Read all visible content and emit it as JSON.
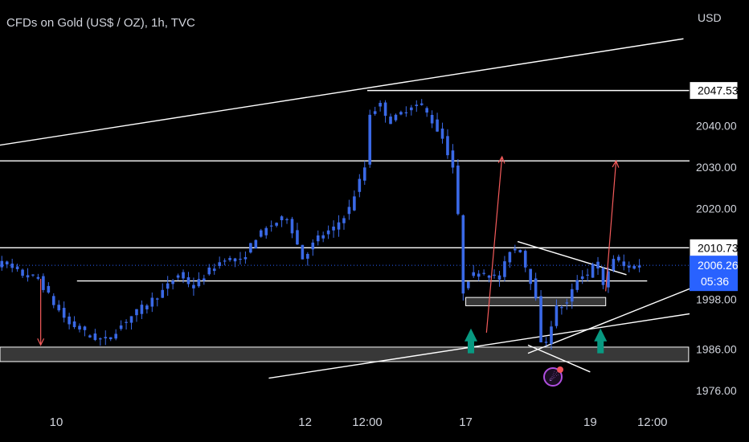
{
  "header": {
    "title": "CFDs on Gold (US$ / OZ), 1h, TVC",
    "currency": "USD"
  },
  "colors": {
    "candle": "#3a69e6",
    "drawing": "#ffffff",
    "arrow_red": "#f45b5b",
    "arrow_green": "#089981",
    "price_tag": "#2962ff"
  },
  "chart_data": {
    "type": "candlestick",
    "symbol": "XAUUSD",
    "interval": "1h",
    "y_axis": {
      "ticks": [
        1976,
        1986,
        1998,
        2010,
        2020,
        2030,
        2040
      ],
      "tick_labels": [
        "1976.00",
        "1986.00",
        "1998.00",
        "2010.00",
        "2020.00",
        "2030.00",
        "2040.00"
      ]
    },
    "x_axis": {
      "ticks": [
        {
          "label": "10",
          "t": 0
        },
        {
          "label": "12",
          "t": 48
        },
        {
          "label": "12:00",
          "t": 60
        },
        {
          "label": "17",
          "t": 79
        },
        {
          "label": "19",
          "t": 103
        },
        {
          "label": "12:00",
          "t": 115
        }
      ]
    },
    "price_tags": {
      "upper_level": "2047.53",
      "resistance": "2010.73",
      "last_price": "2006.26",
      "countdown": "05:36"
    },
    "path": [
      [
        -15,
        2018
      ],
      [
        -13,
        2015
      ],
      [
        -11,
        2007
      ],
      [
        -9,
        2006
      ],
      [
        -6,
        2004
      ],
      [
        -3,
        2003
      ],
      [
        0,
        1997
      ],
      [
        3,
        1992
      ],
      [
        5,
        1991
      ],
      [
        7,
        1989
      ],
      [
        10,
        1988
      ],
      [
        14,
        1993
      ],
      [
        17,
        1996
      ],
      [
        21,
        2000
      ],
      [
        24,
        2004
      ],
      [
        27,
        2001
      ],
      [
        30,
        2005
      ],
      [
        33,
        2008
      ],
      [
        36,
        2007
      ],
      [
        39,
        2013
      ],
      [
        42,
        2016
      ],
      [
        45,
        2018
      ],
      [
        48,
        2008
      ],
      [
        51,
        2013
      ],
      [
        54,
        2015
      ],
      [
        57,
        2020
      ],
      [
        60,
        2030
      ],
      [
        61,
        2043
      ],
      [
        63,
        2045
      ],
      [
        65,
        2041
      ],
      [
        68,
        2044
      ],
      [
        71,
        2045
      ],
      [
        73,
        2041
      ],
      [
        75,
        2037
      ],
      [
        77,
        2030
      ],
      [
        78,
        2018
      ],
      [
        79,
        2000
      ],
      [
        80,
        2003
      ],
      [
        82,
        2005
      ],
      [
        84,
        2004
      ],
      [
        86,
        2003
      ],
      [
        88,
        2010
      ],
      [
        90,
        2010
      ],
      [
        91,
        2006
      ],
      [
        93,
        1999
      ],
      [
        94,
        1987
      ],
      [
        95,
        1988
      ],
      [
        97,
        1996
      ],
      [
        99,
        1997
      ],
      [
        101,
        2003
      ],
      [
        103,
        2004
      ],
      [
        104,
        2007
      ],
      [
        105,
        2005
      ],
      [
        106,
        2001
      ],
      [
        107,
        2005
      ],
      [
        108,
        2008
      ],
      [
        110,
        2006
      ],
      [
        113,
        2006
      ]
    ],
    "horizontal_lines": [
      {
        "price": 2048.5,
        "t1": 60,
        "t2": 999
      },
      {
        "price": 2031.5,
        "t1": -999,
        "t2": 999
      },
      {
        "price": 2010.5,
        "t1": -999,
        "t2": 999
      },
      {
        "price": 2002.5,
        "t1": 4,
        "t2": 114
      }
    ],
    "zones": [
      {
        "t1": -999,
        "t2": 122,
        "low": 1983.0,
        "high": 1986.5
      },
      {
        "t1": 79,
        "t2": 106,
        "low": 1996.5,
        "high": 1998.5
      }
    ],
    "trend_lines": [
      {
        "t1": -15,
        "p1": 2034.5,
        "t2": 121,
        "p2": 2061
      },
      {
        "t1": 41,
        "p1": 1979,
        "t2": 135,
        "p2": 1997
      },
      {
        "t1": 91,
        "p1": 1985,
        "t2": 125,
        "p2": 2002
      },
      {
        "t1": 89,
        "p1": 2012,
        "t2": 110,
        "p2": 2004
      },
      {
        "t1": 91,
        "p1": 1987,
        "t2": 103,
        "p2": 1980.5
      }
    ],
    "arrows": [
      {
        "color": "red",
        "t1": -3,
        "p1": 2003,
        "t2": -3,
        "p2": 1987
      },
      {
        "color": "red",
        "t1": 83,
        "p1": 1990,
        "t2": 86,
        "p2": 2032.5
      },
      {
        "color": "red",
        "t1": 106,
        "p1": 2000,
        "t2": 108,
        "p2": 2031.5
      },
      {
        "color": "green",
        "t1": 80,
        "p1": 1985,
        "t2": 80,
        "p2": 1991
      },
      {
        "color": "green",
        "t1": 105,
        "p1": 1985,
        "t2": 105,
        "p2": 1991
      }
    ],
    "last_price_line": 2006.26
  }
}
